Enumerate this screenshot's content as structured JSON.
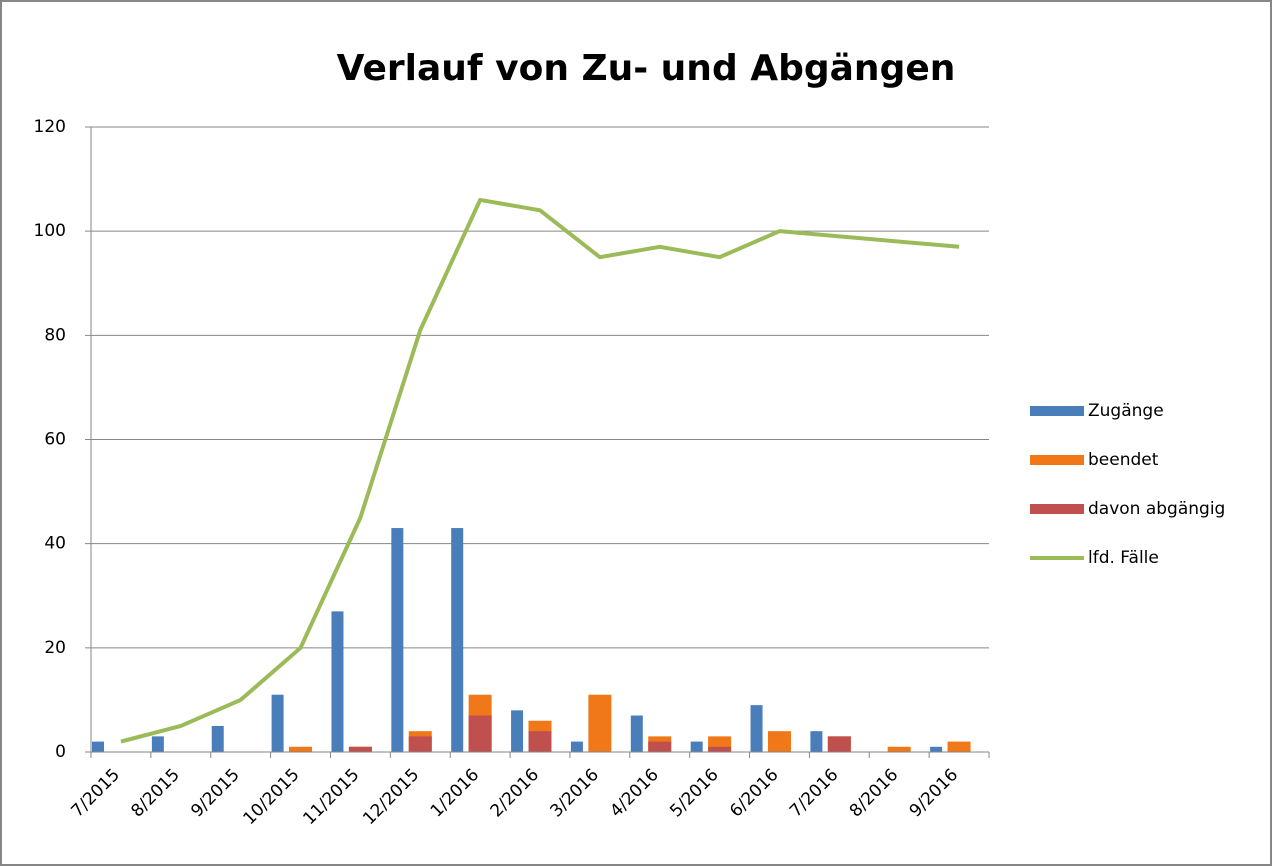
{
  "chart_data": {
    "type": "bar_line",
    "title": "Verlauf von Zu- und Abgängen",
    "categories": [
      "7/2015",
      "8/2015",
      "9/2015",
      "10/2015",
      "11/2015",
      "12/2015",
      "1/2016",
      "2/2016",
      "3/2016",
      "4/2016",
      "5/2016",
      "6/2016",
      "7/2016",
      "8/2016",
      "9/2016"
    ],
    "series": [
      {
        "name": "Zugänge",
        "color": "#4a7ebb",
        "kind": "bar",
        "values": [
          2,
          3,
          5,
          11,
          27,
          43,
          43,
          8,
          2,
          7,
          2,
          9,
          4,
          0,
          1
        ]
      },
      {
        "name": "beendet",
        "color": "#f07818",
        "kind": "bar",
        "values": [
          0,
          0,
          0,
          1,
          1,
          4,
          11,
          6,
          11,
          3,
          3,
          4,
          3,
          1,
          2
        ]
      },
      {
        "name": "davon abgängig",
        "color": "#c0504d",
        "kind": "bar",
        "values": [
          0,
          0,
          0,
          0,
          1,
          3,
          7,
          4,
          0,
          2,
          1,
          0,
          3,
          0,
          0
        ]
      },
      {
        "name": "lfd. Fälle",
        "color": "#9bbb59",
        "kind": "line",
        "values": [
          2,
          5,
          10,
          20,
          45,
          81,
          106,
          104,
          95,
          97,
          95,
          100,
          99,
          98,
          97
        ]
      }
    ],
    "ylim": [
      0,
      120
    ],
    "yticks": [
      0,
      20,
      40,
      60,
      80,
      100,
      120
    ],
    "grid": true,
    "legend": "right"
  }
}
